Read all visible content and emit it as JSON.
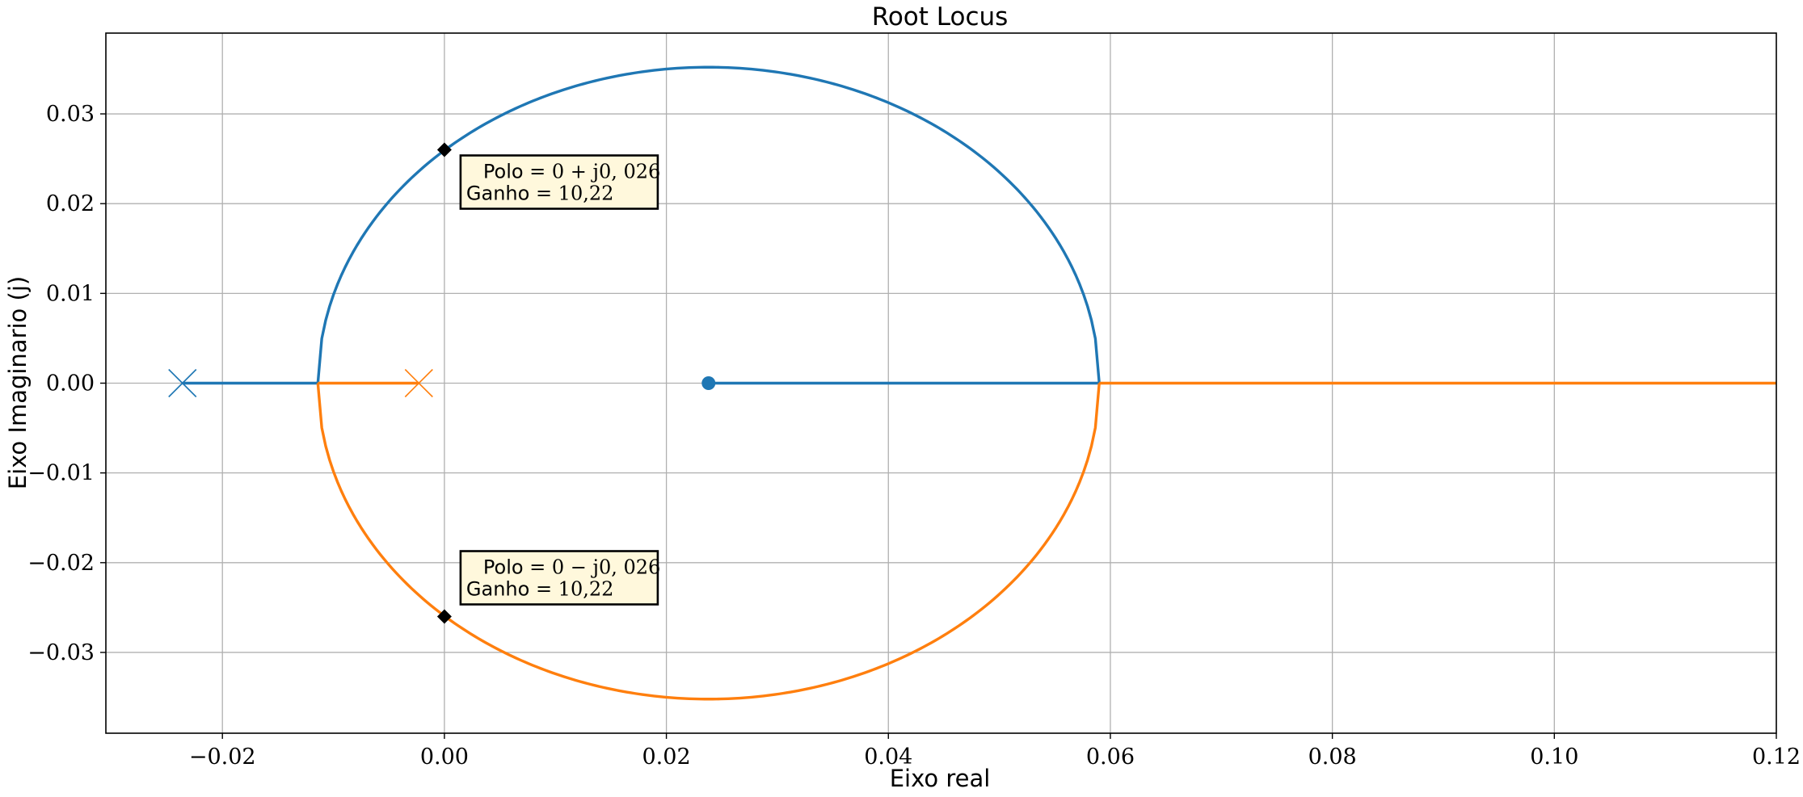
{
  "chart_data": {
    "type": "line",
    "title": "Root Locus",
    "xlabel": "Eixo real",
    "ylabel": "Eixo Imaginario (j)",
    "xlim": [
      -0.0305,
      0.12
    ],
    "ylim": [
      -0.039,
      0.039
    ],
    "grid": true,
    "xticks": [
      -0.02,
      0.0,
      0.02,
      0.04,
      0.06,
      0.08,
      0.1,
      0.12
    ],
    "xtick_labels": [
      "−0.02",
      "0.00",
      "0.02",
      "0.04",
      "0.06",
      "0.08",
      "0.10",
      "0.12"
    ],
    "yticks": [
      -0.03,
      -0.02,
      -0.01,
      0.0,
      0.01,
      0.02,
      0.03
    ],
    "ytick_labels": [
      "−0.03",
      "−0.02",
      "−0.01",
      "0.00",
      "0.01",
      "0.02",
      "0.03"
    ],
    "colors": {
      "branch1": "#1f77b4",
      "branch2": "#ff7f0e",
      "marker": "#000000",
      "annot_bg": "#fff8dc"
    },
    "circle": {
      "center_x": 0.0238,
      "radius_x": 0.0352,
      "radius_y": 0.0352
    },
    "series": [
      {
        "color": "#1f77b4",
        "segments": [
          {
            "shape": "line",
            "points": [
              [
                -0.0236,
                0.0
              ],
              [
                -0.0114,
                0.0
              ]
            ]
          },
          {
            "shape": "upper-arc",
            "from": -0.0114,
            "to": 0.059
          },
          {
            "shape": "line",
            "points": [
              [
                0.059,
                0.0
              ],
              [
                0.0238,
                0.0
              ]
            ]
          }
        ],
        "pole": [
          -0.0236,
          0.0
        ],
        "zero": [
          0.0238,
          0.0
        ]
      },
      {
        "color": "#ff7f0e",
        "segments": [
          {
            "shape": "line",
            "points": [
              [
                -0.0023,
                0.0
              ],
              [
                -0.0114,
                0.0
              ]
            ]
          },
          {
            "shape": "lower-arc",
            "from": -0.0114,
            "to": 0.059
          },
          {
            "shape": "line",
            "points": [
              [
                0.059,
                0.0
              ],
              [
                0.12,
                0.0
              ]
            ]
          }
        ],
        "pole": [
          -0.0023,
          0.0
        ]
      }
    ],
    "markers": [
      {
        "x": 0.0,
        "y": 0.026
      },
      {
        "x": 0.0,
        "y": -0.026
      }
    ],
    "annotations": [
      {
        "x": 0.0,
        "y": 0.026,
        "position": "below-right",
        "line1_prefix": "Polo",
        "line1_math": "= 0 + j0, 026",
        "line2_prefix": "Ganho",
        "line2_math": "= 10,22"
      },
      {
        "x": 0.0,
        "y": -0.026,
        "position": "above-right",
        "line1_prefix": "Polo",
        "line1_math": "= 0 − j0, 026",
        "line2_prefix": "Ganho",
        "line2_math": "= 10,22"
      }
    ]
  }
}
